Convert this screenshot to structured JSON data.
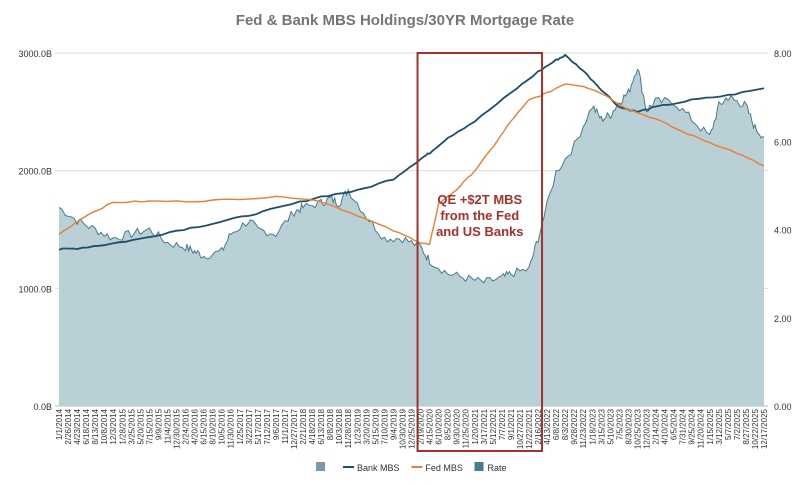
{
  "chart_data": {
    "type": "area+line",
    "title": "Fed & Bank MBS Holdings/30YR Mortgage Rate",
    "y_left": {
      "ticks": [
        "0.0B",
        "1000.0B",
        "2000.0B",
        "3000.0B"
      ],
      "values": [
        0,
        1000,
        2000,
        3000
      ],
      "range": [
        0,
        3000
      ],
      "unit": "B"
    },
    "y_right": {
      "ticks": [
        "0.00",
        "2.00",
        "4.00",
        "6.00",
        "8.00"
      ],
      "values": [
        0,
        2,
        4,
        6,
        8
      ],
      "range": [
        0,
        8
      ]
    },
    "x_tick_labels": [
      "1/1/2014",
      "2/26/2014",
      "4/23/2014",
      "6/18/2014",
      "8/13/2014",
      "10/8/2014",
      "12/3/2014",
      "1/28/2015",
      "3/25/2015",
      "5/20/2015",
      "7/15/2015",
      "9/9/2015",
      "11/4/2015",
      "12/30/2015",
      "2/24/2016",
      "4/20/2016",
      "6/15/2016",
      "8/10/2016",
      "10/5/2016",
      "11/30/2016",
      "1/25/2017",
      "3/22/2017",
      "5/17/2017",
      "7/12/2017",
      "9/6/2017",
      "11/1/2017",
      "12/27/2017",
      "2/21/2018",
      "4/18/2018",
      "6/13/2018",
      "8/8/2018",
      "10/3/2018",
      "11/28/2018",
      "1/23/2019",
      "3/20/2019",
      "5/15/2019",
      "7/10/2019",
      "9/4/2019",
      "10/30/2019",
      "12/25/2019",
      "2/19/2020",
      "4/15/2020",
      "6/10/2020",
      "8/5/2020",
      "9/30/2020",
      "11/25/2020",
      "1/20/2021",
      "3/17/2021",
      "5/12/2021",
      "7/7/2021",
      "9/1/2021",
      "10/27/2021",
      "12/22/2021",
      "2/16/2022",
      "4/13/2022",
      "6/8/2022",
      "8/3/2022",
      "9/28/2022",
      "11/23/2022",
      "1/18/2023",
      "3/15/2023",
      "5/10/2023",
      "7/5/2023",
      "8/30/2023",
      "10/25/2023",
      "12/20/2023",
      "2/14/2024",
      "4/10/2024",
      "6/5/2024",
      "7/31/2024",
      "9/25/2024",
      "11/20/2024",
      "1/15/2025",
      "3/12/2025",
      "5/7/2025",
      "7/2/2025",
      "8/27/2025",
      "10/22/2025",
      "12/17/2025"
    ],
    "series": [
      {
        "name": "",
        "kind": "legend-swatch",
        "color": "#7a9aaa"
      },
      {
        "name": "Bank MBS",
        "kind": "line",
        "axis": "left",
        "color": "#1f4e6b",
        "points": [
          [
            0,
            1330
          ],
          [
            2,
            1340
          ],
          [
            5,
            1370
          ],
          [
            9,
            1420
          ],
          [
            13,
            1490
          ],
          [
            17,
            1550
          ],
          [
            21,
            1620
          ],
          [
            25,
            1700
          ],
          [
            29,
            1780
          ],
          [
            33,
            1830
          ],
          [
            37,
            1930
          ],
          [
            40,
            2100
          ],
          [
            41,
            2150
          ],
          [
            43,
            2280
          ],
          [
            46,
            2420
          ],
          [
            50,
            2660
          ],
          [
            53,
            2840
          ],
          [
            55,
            2940
          ],
          [
            56,
            2980
          ],
          [
            58,
            2850
          ],
          [
            60,
            2690
          ],
          [
            62,
            2540
          ],
          [
            64,
            2500
          ],
          [
            66,
            2540
          ],
          [
            70,
            2600
          ],
          [
            74,
            2640
          ],
          [
            78,
            2700
          ]
        ]
      },
      {
        "name": "Fed MBS",
        "kind": "line",
        "axis": "left",
        "color": "#ed7d31",
        "points": [
          [
            0,
            1460
          ],
          [
            3,
            1620
          ],
          [
            6,
            1730
          ],
          [
            10,
            1740
          ],
          [
            15,
            1740
          ],
          [
            20,
            1760
          ],
          [
            25,
            1780
          ],
          [
            29,
            1740
          ],
          [
            33,
            1620
          ],
          [
            37,
            1490
          ],
          [
            40,
            1390
          ],
          [
            41,
            1370
          ],
          [
            42,
            1720
          ],
          [
            44,
            1840
          ],
          [
            46,
            2000
          ],
          [
            48,
            2200
          ],
          [
            50,
            2420
          ],
          [
            52,
            2600
          ],
          [
            54,
            2660
          ],
          [
            56,
            2740
          ],
          [
            58,
            2720
          ],
          [
            60,
            2660
          ],
          [
            63,
            2520
          ],
          [
            66,
            2440
          ],
          [
            69,
            2330
          ],
          [
            72,
            2240
          ],
          [
            75,
            2150
          ],
          [
            78,
            2040
          ]
        ]
      },
      {
        "name": "Rate",
        "kind": "area",
        "axis": "right",
        "color": "#b9d0d6",
        "edge_color": "#467c8b",
        "points": [
          [
            0,
            4.5
          ],
          [
            2,
            4.2
          ],
          [
            4,
            4.0
          ],
          [
            6,
            3.8
          ],
          [
            8,
            3.9
          ],
          [
            10,
            4.0
          ],
          [
            12,
            3.7
          ],
          [
            14,
            3.6
          ],
          [
            15,
            3.5
          ],
          [
            16,
            3.4
          ],
          [
            18,
            3.5
          ],
          [
            19,
            3.9
          ],
          [
            21,
            4.2
          ],
          [
            22,
            4.0
          ],
          [
            24,
            3.9
          ],
          [
            26,
            4.4
          ],
          [
            27,
            4.5
          ],
          [
            29,
            4.6
          ],
          [
            30,
            4.7
          ],
          [
            31,
            4.6
          ],
          [
            32,
            4.9
          ],
          [
            34,
            4.3
          ],
          [
            36,
            3.8
          ],
          [
            38,
            3.8
          ],
          [
            40,
            3.6
          ],
          [
            41,
            3.3
          ],
          [
            43,
            3.0
          ],
          [
            45,
            2.9
          ],
          [
            47,
            2.8
          ],
          [
            49,
            2.9
          ],
          [
            50,
            3.0
          ],
          [
            52,
            3.1
          ],
          [
            53,
            3.8
          ],
          [
            55,
            5.3
          ],
          [
            57,
            5.9
          ],
          [
            59,
            6.8
          ],
          [
            60,
            6.5
          ],
          [
            61,
            6.6
          ],
          [
            62,
            6.9
          ],
          [
            63,
            7.1
          ],
          [
            64,
            7.7
          ],
          [
            65,
            6.7
          ],
          [
            66,
            6.9
          ],
          [
            68,
            6.9
          ],
          [
            70,
            6.5
          ],
          [
            72,
            6.1
          ],
          [
            73,
            6.8
          ],
          [
            74,
            7.0
          ],
          [
            75,
            6.9
          ],
          [
            76,
            6.8
          ],
          [
            77,
            6.3
          ],
          [
            78,
            6.1
          ]
        ]
      }
    ],
    "legend": {
      "placement": "bottom-center"
    },
    "annotation": {
      "text_lines": [
        "QE +$2T MBS",
        "from the Fed",
        "and US Banks"
      ],
      "x_range": [
        "2/19/2020",
        "2/16/2022"
      ],
      "color": "#a6302a"
    },
    "grid": true
  }
}
